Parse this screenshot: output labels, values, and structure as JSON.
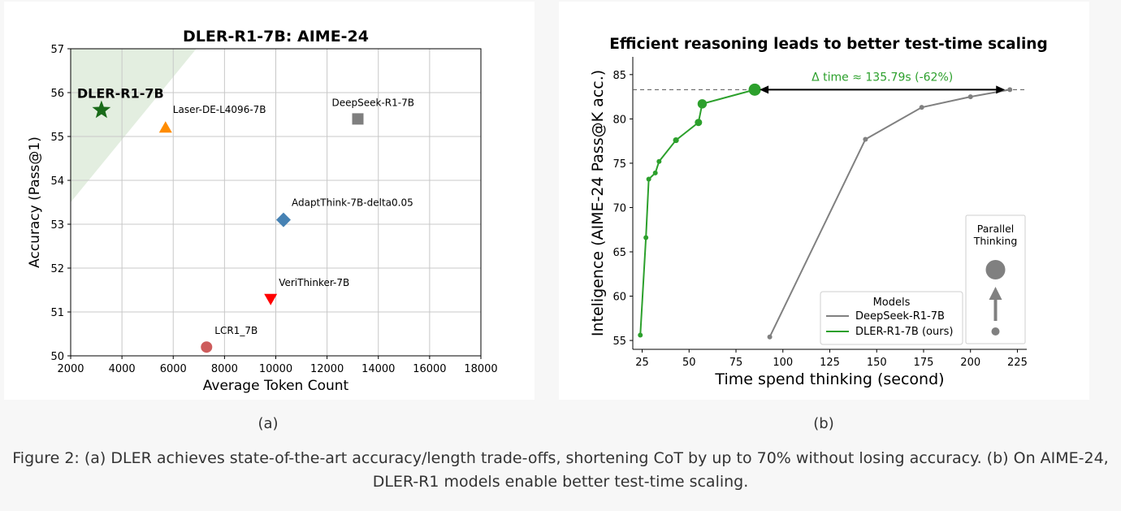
{
  "chart_data": [
    {
      "type": "scatter",
      "title": "DLER-R1-7B: AIME-24",
      "xlabel": "Average Token Count",
      "ylabel": "Accuracy (Pass@1)",
      "xlim": [
        2000,
        18000
      ],
      "ylim": [
        50,
        57
      ],
      "xticks": [
        2000,
        4000,
        6000,
        8000,
        10000,
        12000,
        14000,
        16000,
        18000
      ],
      "yticks": [
        50,
        51,
        52,
        53,
        54,
        55,
        56,
        57
      ],
      "grid": true,
      "shaded_region": {
        "color": "#e3eee0",
        "vertices": [
          [
            2000,
            53.5
          ],
          [
            2000,
            57
          ],
          [
            6900,
            57
          ]
        ]
      },
      "points": [
        {
          "label": "DLER-R1-7B",
          "x": 3200,
          "y": 55.6,
          "marker": "star",
          "color": "#1a6b1a"
        },
        {
          "label": "Laser-DE-L4096-7B",
          "x": 5700,
          "y": 55.2,
          "marker": "triangle-up",
          "color": "#ff8c00"
        },
        {
          "label": "DeepSeek-R1-7B",
          "x": 13200,
          "y": 55.4,
          "marker": "square",
          "color": "#7f7f7f"
        },
        {
          "label": "AdaptThink-7B-delta0.05",
          "x": 10300,
          "y": 53.1,
          "marker": "diamond",
          "color": "#4682b4"
        },
        {
          "label": "VeriThinker-7B",
          "x": 9800,
          "y": 51.3,
          "marker": "triangle-down",
          "color": "#ff0000"
        },
        {
          "label": "LCR1_7B",
          "x": 7300,
          "y": 50.2,
          "marker": "circle",
          "color": "#cd5c5c"
        }
      ]
    },
    {
      "type": "line",
      "title": "Efficient reasoning leads to better test-time scaling",
      "xlabel": "Time spend thinking (second)",
      "ylabel": "Inteligence (AIME-24 Pass@K acc.)",
      "xlim": [
        20,
        230
      ],
      "ylim": [
        54,
        87
      ],
      "xticks": [
        25,
        50,
        75,
        100,
        125,
        150,
        175,
        200,
        225
      ],
      "yticks": [
        55,
        60,
        65,
        70,
        75,
        80,
        85
      ],
      "reference_line_y": 83.3,
      "annotation": {
        "text": "Δ time ≈ 135.79s (-62%)",
        "x_from": 221,
        "x_to": 85,
        "y": 83.3
      },
      "series": [
        {
          "name": "DeepSeek-R1-7B",
          "color": "#808080",
          "x": [
            93,
            144,
            174,
            200,
            221
          ],
          "y": [
            55.4,
            77.7,
            81.3,
            82.5,
            83.3
          ],
          "sizes": [
            1,
            1,
            1,
            1,
            1
          ]
        },
        {
          "name": "DLER-R1-7B (ours)",
          "color": "#2ca02c",
          "x": [
            24,
            27,
            28.5,
            32,
            34,
            43,
            55,
            57,
            85
          ],
          "y": [
            55.6,
            66.6,
            73.2,
            73.9,
            75.2,
            77.6,
            79.6,
            81.7,
            83.3
          ],
          "sizes": [
            1,
            1,
            1,
            1,
            1,
            1.2,
            1.5,
            1.9,
            2.5
          ]
        }
      ],
      "legend": {
        "title": "Models",
        "position": "bottom-right"
      },
      "inset_label": "Parallel Thinking"
    }
  ],
  "sub_labels": {
    "a": "(a)",
    "b": "(b)"
  },
  "caption": {
    "line1": "Figure 2: (a) DLER achieves state-of-the-art accuracy/length trade-offs, shortening CoT by up to 70% without losing accuracy. (b) On AIME-24,",
    "line2": "DLER-R1 models enable better test-time scaling."
  }
}
